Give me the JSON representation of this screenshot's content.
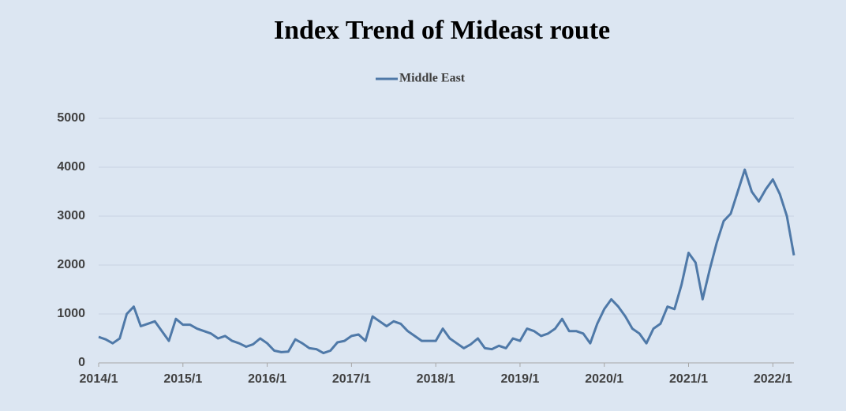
{
  "chart_data": {
    "type": "line",
    "title": "Index Trend of Mideast route",
    "x": [
      "2014/1",
      "2014/2",
      "2014/3",
      "2014/4",
      "2014/5",
      "2014/6",
      "2014/7",
      "2014/8",
      "2014/9",
      "2014/10",
      "2014/11",
      "2014/12",
      "2015/1",
      "2015/2",
      "2015/3",
      "2015/4",
      "2015/5",
      "2015/6",
      "2015/7",
      "2015/8",
      "2015/9",
      "2015/10",
      "2015/11",
      "2015/12",
      "2016/1",
      "2016/2",
      "2016/3",
      "2016/4",
      "2016/5",
      "2016/6",
      "2016/7",
      "2016/8",
      "2016/9",
      "2016/10",
      "2016/11",
      "2016/12",
      "2017/1",
      "2017/2",
      "2017/3",
      "2017/4",
      "2017/5",
      "2017/6",
      "2017/7",
      "2017/8",
      "2017/9",
      "2017/10",
      "2017/11",
      "2017/12",
      "2018/1",
      "2018/2",
      "2018/3",
      "2018/4",
      "2018/5",
      "2018/6",
      "2018/7",
      "2018/8",
      "2018/9",
      "2018/10",
      "2018/11",
      "2018/12",
      "2019/1",
      "2019/2",
      "2019/3",
      "2019/4",
      "2019/5",
      "2019/6",
      "2019/7",
      "2019/8",
      "2019/9",
      "2019/10",
      "2019/11",
      "2019/12",
      "2020/1",
      "2020/2",
      "2020/3",
      "2020/4",
      "2020/5",
      "2020/6",
      "2020/7",
      "2020/8",
      "2020/9",
      "2020/10",
      "2020/11",
      "2020/12",
      "2021/1",
      "2021/2",
      "2021/3",
      "2021/4",
      "2021/5",
      "2021/6",
      "2021/7",
      "2021/8",
      "2021/9",
      "2021/10",
      "2021/11",
      "2021/12",
      "2022/1",
      "2022/2",
      "2022/3",
      "2022/4"
    ],
    "series": [
      {
        "name": "Middle East",
        "color": "#4f79a8",
        "values": [
          530,
          480,
          400,
          500,
          1000,
          1150,
          750,
          800,
          850,
          650,
          450,
          900,
          780,
          780,
          700,
          650,
          600,
          500,
          550,
          450,
          400,
          330,
          380,
          500,
          400,
          250,
          220,
          230,
          480,
          400,
          300,
          280,
          200,
          250,
          420,
          450,
          550,
          580,
          450,
          950,
          850,
          750,
          850,
          800,
          650,
          550,
          450,
          450,
          450,
          700,
          500,
          400,
          300,
          380,
          500,
          300,
          280,
          350,
          300,
          500,
          450,
          700,
          650,
          550,
          600,
          700,
          900,
          650,
          650,
          600,
          400,
          800,
          1100,
          1300,
          1150,
          950,
          700,
          600,
          400,
          700,
          800,
          1150,
          1100,
          1600,
          2250,
          2050,
          1300,
          1900,
          2450,
          2900,
          3050,
          3500,
          3950,
          3500,
          3300,
          3550,
          3750,
          3450,
          3000,
          2200
        ]
      }
    ],
    "xticks": [
      "2014/1",
      "2015/1",
      "2016/1",
      "2017/1",
      "2018/1",
      "2019/1",
      "2020/1",
      "2021/1",
      "2022/1"
    ],
    "ylim": [
      0,
      5000
    ],
    "yticks": [
      0,
      1000,
      2000,
      3000,
      4000,
      5000
    ],
    "grid": true,
    "legend": "top"
  }
}
